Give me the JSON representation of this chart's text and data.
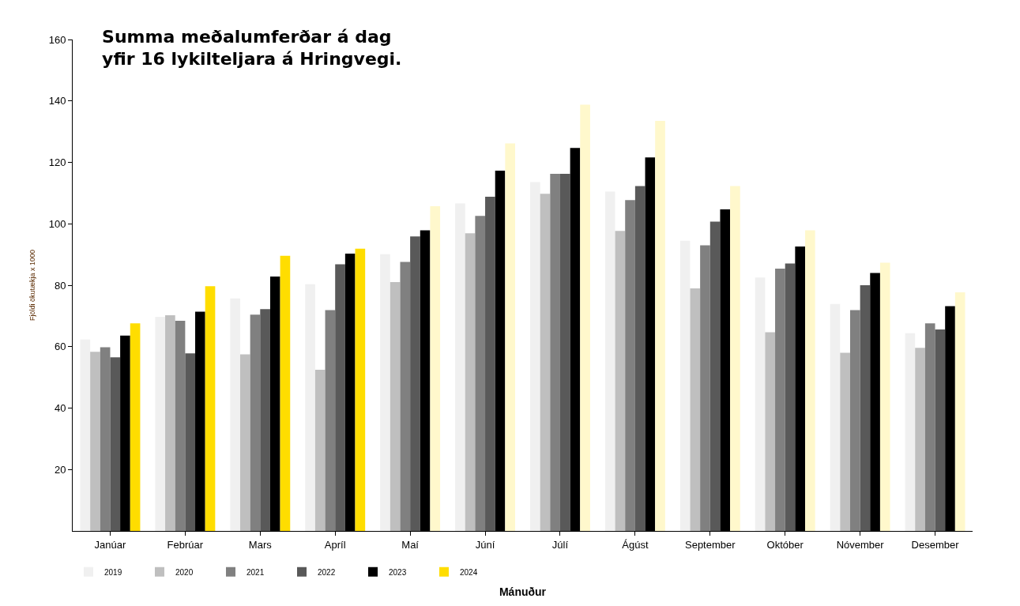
{
  "chart_data": {
    "type": "bar",
    "title": "Summa meðalumferðar á dag\nyfir 16 lykilteljara á Hringvegi.",
    "xlabel": "Mánuður",
    "ylabel": "Fjöldi ökutækja x 1000",
    "categories": [
      "Janúar",
      "Febrúar",
      "Mars",
      "Apríl",
      "Maí",
      "Júní",
      "Júlí",
      "Ágúst",
      "September",
      "Október",
      "Nóvember",
      "Desember"
    ],
    "series": [
      {
        "name": "2019",
        "color": "#f0f0f0",
        "values": [
          62.3,
          69.7,
          75.7,
          80.3,
          90.1,
          106.6,
          113.6,
          110.5,
          94.5,
          82.5,
          73.9,
          64.4
        ]
      },
      {
        "name": "2020",
        "color": "#bfbfbf",
        "values": [
          58.3,
          70.2,
          57.5,
          52.5,
          81.0,
          96.9,
          109.8,
          97.7,
          79.0,
          64.7,
          58.0,
          59.6
        ]
      },
      {
        "name": "2021",
        "color": "#808080",
        "values": [
          59.8,
          68.4,
          70.4,
          71.9,
          87.6,
          102.6,
          116.3,
          107.7,
          93.0,
          85.4,
          71.9,
          67.6
        ]
      },
      {
        "name": "2022",
        "color": "#595959",
        "values": [
          56.5,
          57.8,
          72.2,
          86.8,
          95.9,
          108.8,
          116.3,
          112.3,
          100.7,
          87.1,
          80.0,
          65.6
        ]
      },
      {
        "name": "2023",
        "color": "#000000",
        "values": [
          63.6,
          71.4,
          82.8,
          90.3,
          97.9,
          117.3,
          124.7,
          121.6,
          104.7,
          92.6,
          84.0,
          73.2
        ]
      },
      {
        "name": "2024",
        "colors": [
          "#ffdd00",
          "#ffdd00",
          "#ffdd00",
          "#ffdd00",
          "#fff8cc",
          "#fff8cc",
          "#fff8cc",
          "#fff8cc",
          "#fff8cc",
          "#fff8cc",
          "#fff8cc",
          "#fff8cc"
        ],
        "values": [
          67.6,
          79.7,
          89.6,
          91.9,
          105.7,
          126.2,
          138.8,
          133.5,
          112.3,
          97.9,
          87.3,
          77.7
        ]
      }
    ],
    "ylim": [
      0,
      160
    ],
    "yticks": [
      20,
      40,
      60,
      80,
      100,
      120,
      140,
      160
    ],
    "legend": "bottom left"
  }
}
